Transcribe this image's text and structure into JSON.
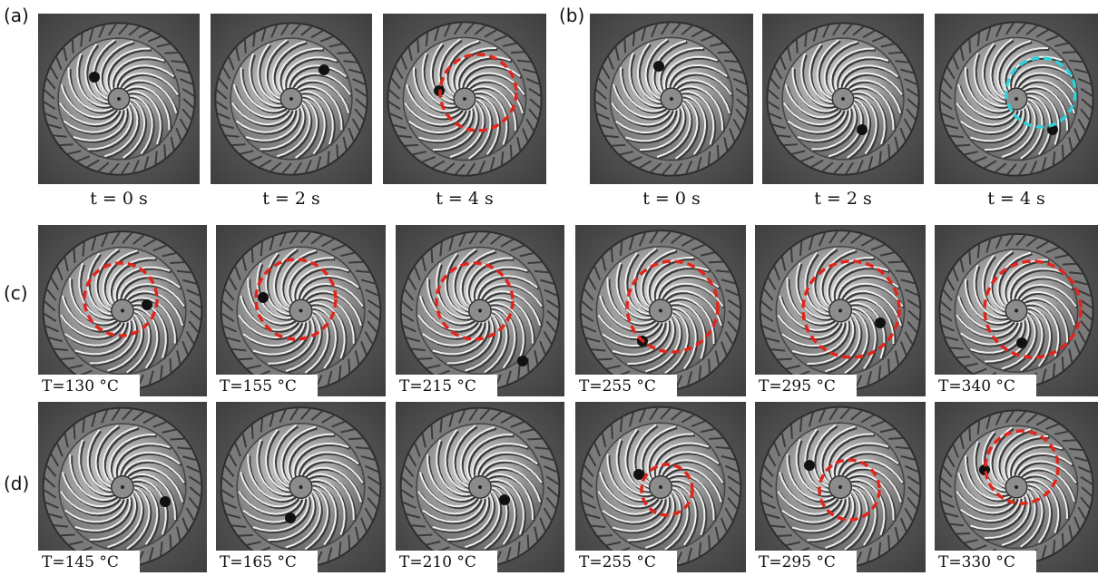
{
  "panels": [
    {
      "label": "(a)",
      "captions": [
        "t = 0 s",
        "t = 2 s",
        "t = 4 s"
      ]
    },
    {
      "label": "(b)",
      "captions": [
        "t = 0 s",
        "t = 2 s",
        "t = 4 s"
      ]
    },
    {
      "label": "(c)",
      "captions": [
        "T=130 °C",
        "T=155 °C",
        "T=215 °C",
        "T=255 °C",
        "T=295 °C",
        "T=340 °C"
      ]
    },
    {
      "label": "(d)",
      "captions": [
        "T=145 °C",
        "T=165 °C",
        "T=210 °C",
        "T=255 °C",
        "T=295 °C",
        "T=330 °C"
      ]
    }
  ]
}
